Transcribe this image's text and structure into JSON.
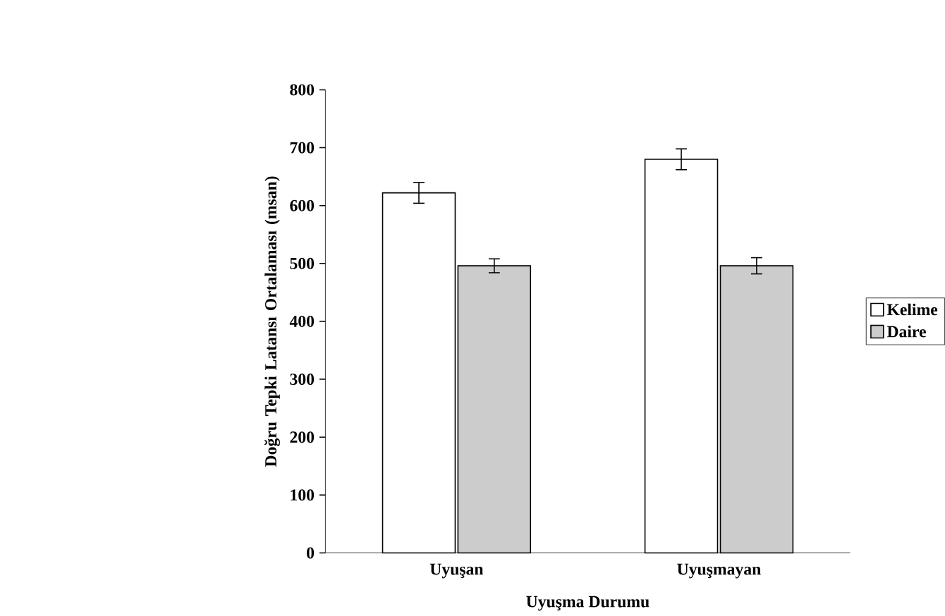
{
  "chart_data": {
    "type": "bar",
    "xlabel": "Uyuşma Durumu",
    "ylabel": "Doğru Tepki Latansı Ortalaması (msan)",
    "categories": [
      "Uyuşan",
      "Uyuşmayan"
    ],
    "series": [
      {
        "name": "Kelime",
        "color": "#ffffff",
        "values": [
          622,
          680
        ],
        "errors": [
          18,
          18
        ]
      },
      {
        "name": "Daire",
        "color": "#cccccc",
        "values": [
          496,
          496
        ],
        "errors": [
          12,
          14
        ]
      }
    ],
    "ylim": [
      0,
      800
    ],
    "yticks": [
      0,
      100,
      200,
      300,
      400,
      500,
      600,
      700,
      800
    ],
    "grid": false,
    "legend": "right"
  }
}
